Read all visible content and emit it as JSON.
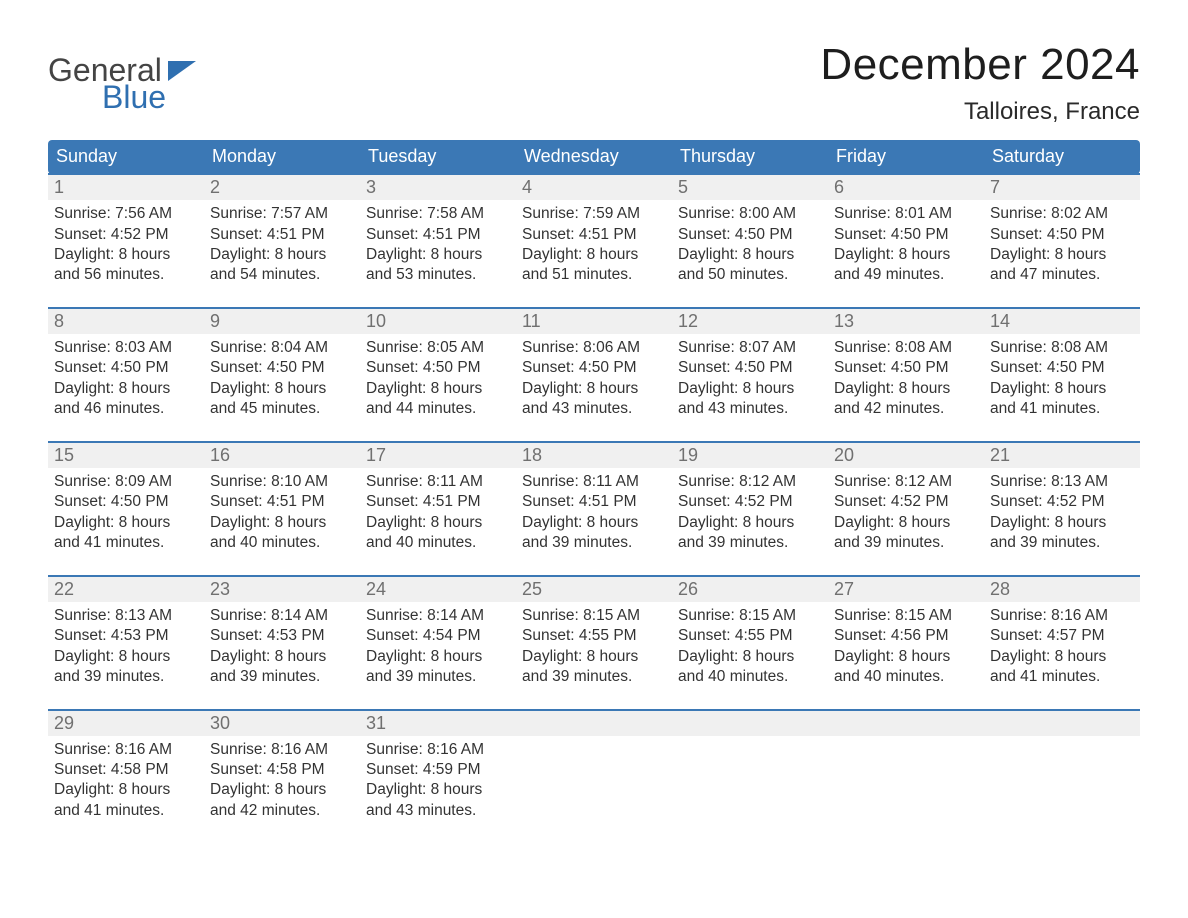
{
  "logo": {
    "text1": "General",
    "text2": "Blue",
    "flag_color": "#2f6fb0"
  },
  "title": "December 2024",
  "location": "Talloires, France",
  "colors": {
    "header_bg": "#3b78b5",
    "header_text": "#ffffff",
    "week_border": "#3b78b5",
    "daynum_bg": "#f0f0f0",
    "daynum_text": "#707070",
    "body_text": "#333333",
    "page_bg": "#ffffff"
  },
  "typography": {
    "title_fontsize": 44,
    "location_fontsize": 24,
    "header_fontsize": 18,
    "cell_fontsize": 15.5
  },
  "day_names": [
    "Sunday",
    "Monday",
    "Tuesday",
    "Wednesday",
    "Thursday",
    "Friday",
    "Saturday"
  ],
  "weeks": [
    [
      {
        "n": "1",
        "sunrise": "Sunrise: 7:56 AM",
        "sunset": "Sunset: 4:52 PM",
        "d1": "Daylight: 8 hours",
        "d2": "and 56 minutes."
      },
      {
        "n": "2",
        "sunrise": "Sunrise: 7:57 AM",
        "sunset": "Sunset: 4:51 PM",
        "d1": "Daylight: 8 hours",
        "d2": "and 54 minutes."
      },
      {
        "n": "3",
        "sunrise": "Sunrise: 7:58 AM",
        "sunset": "Sunset: 4:51 PM",
        "d1": "Daylight: 8 hours",
        "d2": "and 53 minutes."
      },
      {
        "n": "4",
        "sunrise": "Sunrise: 7:59 AM",
        "sunset": "Sunset: 4:51 PM",
        "d1": "Daylight: 8 hours",
        "d2": "and 51 minutes."
      },
      {
        "n": "5",
        "sunrise": "Sunrise: 8:00 AM",
        "sunset": "Sunset: 4:50 PM",
        "d1": "Daylight: 8 hours",
        "d2": "and 50 minutes."
      },
      {
        "n": "6",
        "sunrise": "Sunrise: 8:01 AM",
        "sunset": "Sunset: 4:50 PM",
        "d1": "Daylight: 8 hours",
        "d2": "and 49 minutes."
      },
      {
        "n": "7",
        "sunrise": "Sunrise: 8:02 AM",
        "sunset": "Sunset: 4:50 PM",
        "d1": "Daylight: 8 hours",
        "d2": "and 47 minutes."
      }
    ],
    [
      {
        "n": "8",
        "sunrise": "Sunrise: 8:03 AM",
        "sunset": "Sunset: 4:50 PM",
        "d1": "Daylight: 8 hours",
        "d2": "and 46 minutes."
      },
      {
        "n": "9",
        "sunrise": "Sunrise: 8:04 AM",
        "sunset": "Sunset: 4:50 PM",
        "d1": "Daylight: 8 hours",
        "d2": "and 45 minutes."
      },
      {
        "n": "10",
        "sunrise": "Sunrise: 8:05 AM",
        "sunset": "Sunset: 4:50 PM",
        "d1": "Daylight: 8 hours",
        "d2": "and 44 minutes."
      },
      {
        "n": "11",
        "sunrise": "Sunrise: 8:06 AM",
        "sunset": "Sunset: 4:50 PM",
        "d1": "Daylight: 8 hours",
        "d2": "and 43 minutes."
      },
      {
        "n": "12",
        "sunrise": "Sunrise: 8:07 AM",
        "sunset": "Sunset: 4:50 PM",
        "d1": "Daylight: 8 hours",
        "d2": "and 43 minutes."
      },
      {
        "n": "13",
        "sunrise": "Sunrise: 8:08 AM",
        "sunset": "Sunset: 4:50 PM",
        "d1": "Daylight: 8 hours",
        "d2": "and 42 minutes."
      },
      {
        "n": "14",
        "sunrise": "Sunrise: 8:08 AM",
        "sunset": "Sunset: 4:50 PM",
        "d1": "Daylight: 8 hours",
        "d2": "and 41 minutes."
      }
    ],
    [
      {
        "n": "15",
        "sunrise": "Sunrise: 8:09 AM",
        "sunset": "Sunset: 4:50 PM",
        "d1": "Daylight: 8 hours",
        "d2": "and 41 minutes."
      },
      {
        "n": "16",
        "sunrise": "Sunrise: 8:10 AM",
        "sunset": "Sunset: 4:51 PM",
        "d1": "Daylight: 8 hours",
        "d2": "and 40 minutes."
      },
      {
        "n": "17",
        "sunrise": "Sunrise: 8:11 AM",
        "sunset": "Sunset: 4:51 PM",
        "d1": "Daylight: 8 hours",
        "d2": "and 40 minutes."
      },
      {
        "n": "18",
        "sunrise": "Sunrise: 8:11 AM",
        "sunset": "Sunset: 4:51 PM",
        "d1": "Daylight: 8 hours",
        "d2": "and 39 minutes."
      },
      {
        "n": "19",
        "sunrise": "Sunrise: 8:12 AM",
        "sunset": "Sunset: 4:52 PM",
        "d1": "Daylight: 8 hours",
        "d2": "and 39 minutes."
      },
      {
        "n": "20",
        "sunrise": "Sunrise: 8:12 AM",
        "sunset": "Sunset: 4:52 PM",
        "d1": "Daylight: 8 hours",
        "d2": "and 39 minutes."
      },
      {
        "n": "21",
        "sunrise": "Sunrise: 8:13 AM",
        "sunset": "Sunset: 4:52 PM",
        "d1": "Daylight: 8 hours",
        "d2": "and 39 minutes."
      }
    ],
    [
      {
        "n": "22",
        "sunrise": "Sunrise: 8:13 AM",
        "sunset": "Sunset: 4:53 PM",
        "d1": "Daylight: 8 hours",
        "d2": "and 39 minutes."
      },
      {
        "n": "23",
        "sunrise": "Sunrise: 8:14 AM",
        "sunset": "Sunset: 4:53 PM",
        "d1": "Daylight: 8 hours",
        "d2": "and 39 minutes."
      },
      {
        "n": "24",
        "sunrise": "Sunrise: 8:14 AM",
        "sunset": "Sunset: 4:54 PM",
        "d1": "Daylight: 8 hours",
        "d2": "and 39 minutes."
      },
      {
        "n": "25",
        "sunrise": "Sunrise: 8:15 AM",
        "sunset": "Sunset: 4:55 PM",
        "d1": "Daylight: 8 hours",
        "d2": "and 39 minutes."
      },
      {
        "n": "26",
        "sunrise": "Sunrise: 8:15 AM",
        "sunset": "Sunset: 4:55 PM",
        "d1": "Daylight: 8 hours",
        "d2": "and 40 minutes."
      },
      {
        "n": "27",
        "sunrise": "Sunrise: 8:15 AM",
        "sunset": "Sunset: 4:56 PM",
        "d1": "Daylight: 8 hours",
        "d2": "and 40 minutes."
      },
      {
        "n": "28",
        "sunrise": "Sunrise: 8:16 AM",
        "sunset": "Sunset: 4:57 PM",
        "d1": "Daylight: 8 hours",
        "d2": "and 41 minutes."
      }
    ],
    [
      {
        "n": "29",
        "sunrise": "Sunrise: 8:16 AM",
        "sunset": "Sunset: 4:58 PM",
        "d1": "Daylight: 8 hours",
        "d2": "and 41 minutes."
      },
      {
        "n": "30",
        "sunrise": "Sunrise: 8:16 AM",
        "sunset": "Sunset: 4:58 PM",
        "d1": "Daylight: 8 hours",
        "d2": "and 42 minutes."
      },
      {
        "n": "31",
        "sunrise": "Sunrise: 8:16 AM",
        "sunset": "Sunset: 4:59 PM",
        "d1": "Daylight: 8 hours",
        "d2": "and 43 minutes."
      },
      null,
      null,
      null,
      null
    ]
  ]
}
